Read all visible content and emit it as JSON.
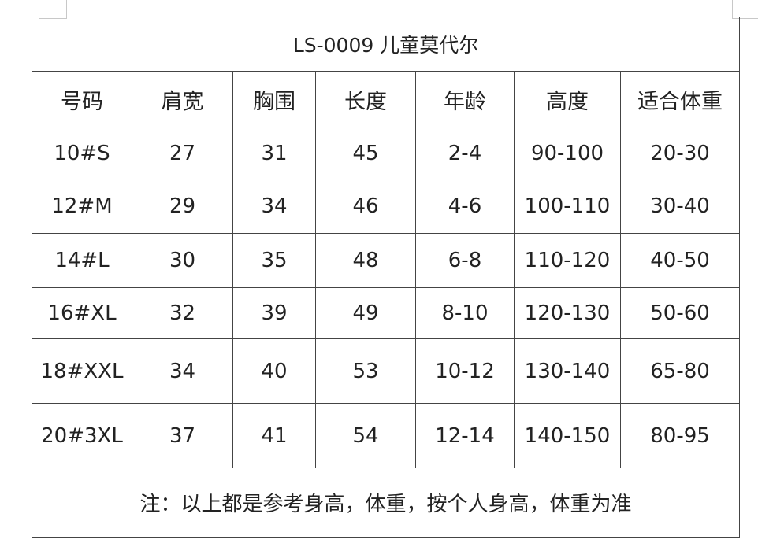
{
  "title": "LS-0009 儿童莫代尔",
  "headers": [
    "号码",
    "肩宽",
    "胸围",
    "长度",
    "年龄",
    "高度",
    "适合体重"
  ],
  "rows": [
    [
      "10#S",
      "27",
      "31",
      "45",
      "2-4",
      "90-100",
      "20-30"
    ],
    [
      "12#M",
      "29",
      "34",
      "46",
      "4-6",
      "100-110",
      "30-40"
    ],
    [
      "14#L",
      "30",
      "35",
      "48",
      "6-8",
      "110-120",
      "40-50"
    ],
    [
      "16#XL",
      "32",
      "39",
      "49",
      "8-10",
      "120-130",
      "50-60"
    ],
    [
      "18#XXL",
      "34",
      "40",
      "53",
      "10-12",
      "130-140",
      "65-80"
    ],
    [
      "20#3XL",
      "37",
      "41",
      "54",
      "12-14",
      "140-150",
      "80-95"
    ]
  ],
  "note": "注：以上都是参考身高，体重，按个人身高，体重为准"
}
